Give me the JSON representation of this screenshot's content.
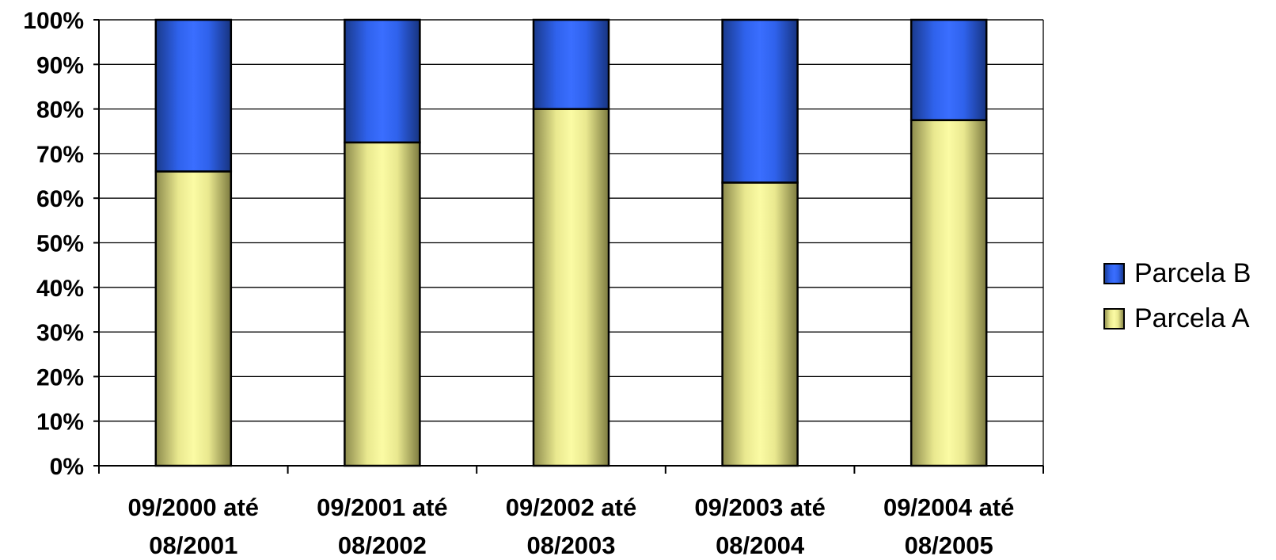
{
  "chart_data": {
    "type": "bar",
    "stacked": true,
    "percent_stacked": true,
    "categories": [
      [
        "09/2000 até",
        "08/2001"
      ],
      [
        "09/2001 até",
        "08/2002"
      ],
      [
        "09/2002 até",
        "08/2003"
      ],
      [
        "09/2003 até",
        "08/2004"
      ],
      [
        "09/2004 até",
        "08/2005"
      ]
    ],
    "series": [
      {
        "name": "Parcela A",
        "color": "#f2f29a",
        "values": [
          66,
          72.5,
          80,
          63.5,
          77.5
        ]
      },
      {
        "name": "Parcela B",
        "color": "#2f64f2",
        "values": [
          34,
          27.5,
          20,
          36.5,
          22.5
        ]
      }
    ],
    "ylim": [
      0,
      100
    ],
    "yticks": [
      "0%",
      "10%",
      "20%",
      "30%",
      "40%",
      "50%",
      "60%",
      "70%",
      "80%",
      "90%",
      "100%"
    ],
    "xlabel": "",
    "ylabel": "",
    "title": "",
    "grid": true,
    "legend": {
      "position": "right",
      "entries": [
        "Parcela B",
        "Parcela A"
      ]
    }
  }
}
